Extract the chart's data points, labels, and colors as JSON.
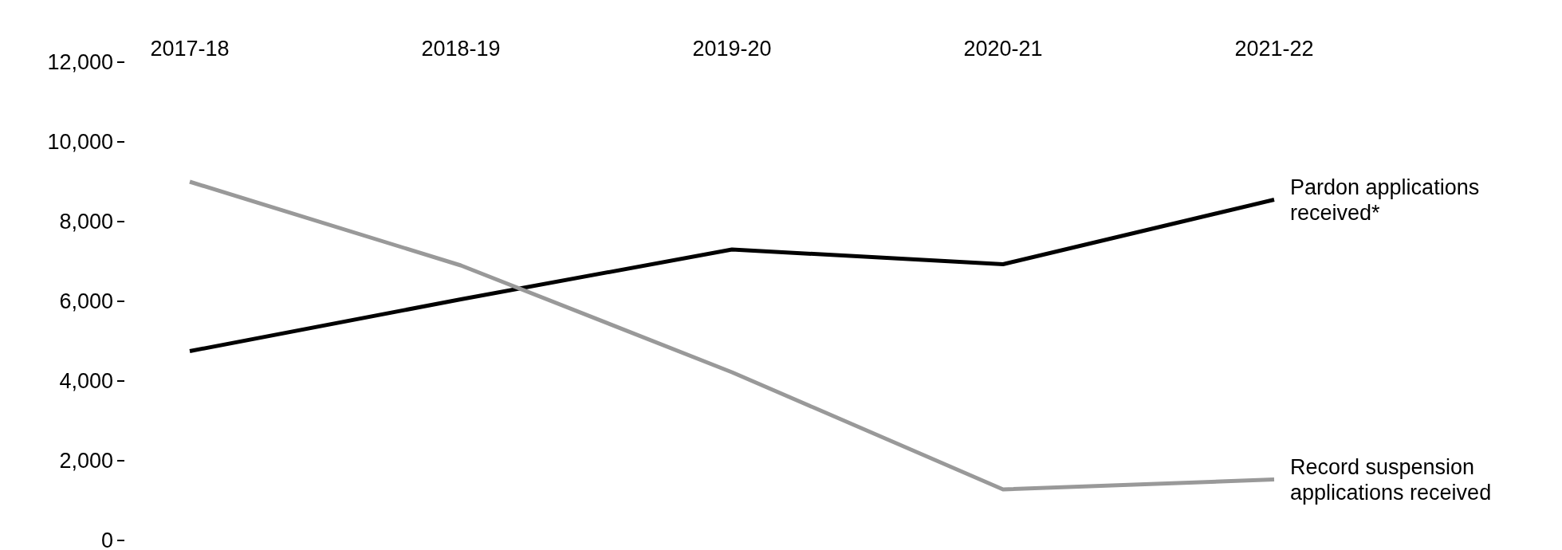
{
  "chart_data": {
    "type": "line",
    "categories": [
      "2017-18",
      "2018-19",
      "2019-20",
      "2020-21",
      "2021-22"
    ],
    "series": [
      {
        "name": "Pardon applications received*",
        "color": "#000000",
        "values": [
          4750,
          6050,
          7300,
          6930,
          8550
        ]
      },
      {
        "name": "Record suspension applications received",
        "color": "#999999",
        "values": [
          9000,
          6900,
          4220,
          1280,
          1530
        ]
      }
    ],
    "ylim": [
      0,
      12000
    ],
    "yticks": [
      {
        "value": 0,
        "label": "0"
      },
      {
        "value": 2000,
        "label": "2,000"
      },
      {
        "value": 4000,
        "label": "4,000"
      },
      {
        "value": 6000,
        "label": "6,000"
      },
      {
        "value": 8000,
        "label": "8,000"
      },
      {
        "value": 10000,
        "label": "10,000"
      },
      {
        "value": 12000,
        "label": "12,000"
      }
    ],
    "grid": false,
    "legend": false,
    "line_style": "solid"
  }
}
